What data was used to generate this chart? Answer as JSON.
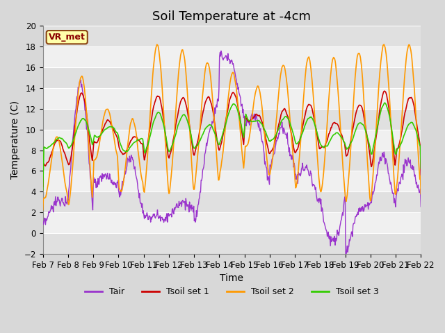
{
  "title": "Soil Temperature at -4cm",
  "xlabel": "Time",
  "ylabel": "Temperature (C)",
  "ylim": [
    -2,
    20
  ],
  "yticks": [
    -2,
    0,
    2,
    4,
    6,
    8,
    10,
    12,
    14,
    16,
    18,
    20
  ],
  "xtick_labels": [
    "Feb 7",
    "Feb 8",
    "Feb 9",
    "Feb 10",
    "Feb 11",
    "Feb 12",
    "Feb 13",
    "Feb 14",
    "Feb 15",
    "Feb 16",
    "Feb 17",
    "Feb 18",
    "Feb 19",
    "Feb 20",
    "Feb 21",
    "Feb 22"
  ],
  "colors": {
    "Tair": "#9933CC",
    "Tsoil1": "#CC0000",
    "Tsoil2": "#FF9900",
    "Tsoil3": "#33CC00"
  },
  "legend_labels": [
    "Tair",
    "Tsoil set 1",
    "Tsoil set 2",
    "Tsoil set 3"
  ],
  "watermark": "VR_met",
  "fig_bg": "#D8D8D8",
  "plot_bg_light": "#F0F0F0",
  "plot_bg_dark": "#E0E0E0",
  "grid_color": "#FFFFFF",
  "n_points": 720,
  "title_fontsize": 13,
  "axis_label_fontsize": 10,
  "tick_fontsize": 8.5
}
